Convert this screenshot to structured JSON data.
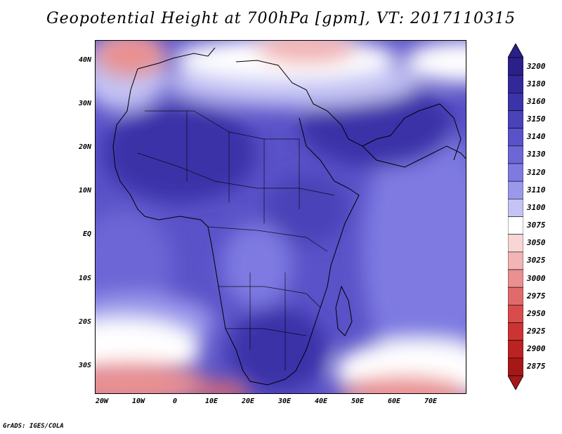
{
  "title": "Geopotential Height at 700hPa [gpm], VT: 2017110315",
  "lat_labels": [
    "40N",
    "30N",
    "20N",
    "10N",
    "EQ",
    "10S",
    "20S",
    "30S"
  ],
  "lon_labels": [
    "20W",
    "10W",
    "0",
    "10E",
    "20E",
    "30E",
    "40E",
    "50E",
    "60E",
    "70E"
  ],
  "colorbar": {
    "levels": [
      "3200",
      "3180",
      "3160",
      "3150",
      "3140",
      "3130",
      "3120",
      "3110",
      "3100",
      "3075",
      "3050",
      "3025",
      "3000",
      "2975",
      "2950",
      "2925",
      "2900",
      "2875"
    ],
    "colors": [
      "#2b1f8a",
      "#33289a",
      "#3b33a8",
      "#4a42b8",
      "#5a52c8",
      "#6c66d6",
      "#7e7ae2",
      "#9b98ec",
      "#c4c3f4",
      "#ffffff",
      "#f8d6d6",
      "#f2b4b4",
      "#ea9090",
      "#e06b6b",
      "#d84c4c",
      "#cc3434",
      "#bb2222",
      "#a61818"
    ]
  },
  "footer": "GrADS: IGES/COLA"
}
